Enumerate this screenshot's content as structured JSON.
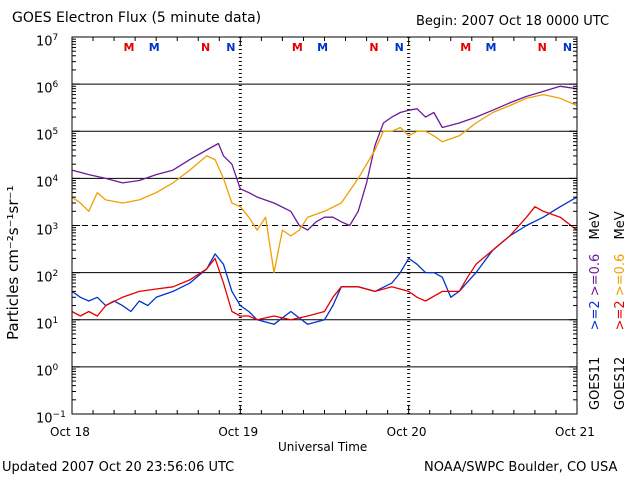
{
  "header": {
    "title": "GOES Electron Flux (5 minute data)",
    "begin": "Begin: 2007 Oct 18 0000 UTC"
  },
  "footer": {
    "updated": "Updated 2007 Oct 20 23:56:06 UTC",
    "credit": "NOAA/SWPC Boulder, CO USA"
  },
  "legend": {
    "goes11_prefix": "GOES11",
    "goes11_e2": ">=2",
    "goes11_e06": ">=0.6",
    "goes11_unit": "MeV",
    "goes12_prefix": "GOES12",
    "goes12_e2": ">=2",
    "goes12_e06": ">=0.6",
    "goes12_unit": "MeV"
  },
  "markers": [
    {
      "label": "M",
      "color": "#e60000",
      "day": 0.33
    },
    {
      "label": "M",
      "color": "#0033cc",
      "day": 0.48
    },
    {
      "label": "N",
      "color": "#e60000",
      "day": 0.79
    },
    {
      "label": "N",
      "color": "#0033cc",
      "day": 0.94
    },
    {
      "label": "M",
      "color": "#e60000",
      "day": 1.33
    },
    {
      "label": "M",
      "color": "#0033cc",
      "day": 1.48
    },
    {
      "label": "N",
      "color": "#e60000",
      "day": 1.79
    },
    {
      "label": "N",
      "color": "#0033cc",
      "day": 1.94
    },
    {
      "label": "M",
      "color": "#e60000",
      "day": 2.33
    },
    {
      "label": "M",
      "color": "#0033cc",
      "day": 2.48
    },
    {
      "label": "N",
      "color": "#e60000",
      "day": 2.79
    },
    {
      "label": "N",
      "color": "#0033cc",
      "day": 2.94
    }
  ],
  "chart_data": {
    "type": "line",
    "xlabel": "Universal Time",
    "ylabel": "Particles cm⁻²s⁻¹sr⁻¹",
    "y_scale": "log",
    "ylim": [
      0.1,
      10000000
    ],
    "xlim_days": [
      0,
      3
    ],
    "x_ticks": [
      {
        "day": 0,
        "label": "Oct 18"
      },
      {
        "day": 1,
        "label": "Oct 19"
      },
      {
        "day": 2,
        "label": "Oct 20"
      },
      {
        "day": 3,
        "label": "Oct 21"
      }
    ],
    "y_ticks": [
      {
        "value": 0.1,
        "base": "10",
        "exp": "−1"
      },
      {
        "value": 1,
        "base": "10",
        "exp": "0"
      },
      {
        "value": 10,
        "base": "10",
        "exp": "1"
      },
      {
        "value": 100,
        "base": "10",
        "exp": "2"
      },
      {
        "value": 1000,
        "base": "10",
        "exp": "3"
      },
      {
        "value": 10000,
        "base": "10",
        "exp": "4"
      },
      {
        "value": 100000,
        "base": "10",
        "exp": "5"
      },
      {
        "value": 1000000,
        "base": "10",
        "exp": "6"
      },
      {
        "value": 10000000,
        "base": "10",
        "exp": "7"
      }
    ],
    "dashed_reference": 1000,
    "series": [
      {
        "name": "GOES11 >=0.6 MeV",
        "color": "#6a1b9a",
        "points": [
          [
            0,
            15000
          ],
          [
            0.1,
            12000
          ],
          [
            0.2,
            10000
          ],
          [
            0.3,
            8000
          ],
          [
            0.4,
            9000
          ],
          [
            0.5,
            12000
          ],
          [
            0.6,
            15000
          ],
          [
            0.7,
            25000
          ],
          [
            0.8,
            40000
          ],
          [
            0.87,
            55000
          ],
          [
            0.9,
            30000
          ],
          [
            0.95,
            20000
          ],
          [
            1.0,
            6000
          ],
          [
            1.05,
            5000
          ],
          [
            1.1,
            4000
          ],
          [
            1.2,
            3000
          ],
          [
            1.3,
            2000
          ],
          [
            1.35,
            1000
          ],
          [
            1.4,
            800
          ],
          [
            1.45,
            1200
          ],
          [
            1.5,
            1500
          ],
          [
            1.55,
            1500
          ],
          [
            1.6,
            1200
          ],
          [
            1.65,
            1000
          ],
          [
            1.7,
            2000
          ],
          [
            1.75,
            8000
          ],
          [
            1.8,
            50000
          ],
          [
            1.85,
            150000
          ],
          [
            1.9,
            200000
          ],
          [
            1.95,
            250000
          ],
          [
            2.0,
            280000
          ],
          [
            2.05,
            300000
          ],
          [
            2.1,
            200000
          ],
          [
            2.15,
            250000
          ],
          [
            2.2,
            120000
          ],
          [
            2.3,
            150000
          ],
          [
            2.4,
            200000
          ],
          [
            2.5,
            280000
          ],
          [
            2.6,
            400000
          ],
          [
            2.7,
            550000
          ],
          [
            2.8,
            700000
          ],
          [
            2.9,
            900000
          ],
          [
            3.0,
            800000
          ]
        ]
      },
      {
        "name": "GOES12 >=0.6 MeV",
        "color": "#f0a000",
        "points": [
          [
            0,
            4000
          ],
          [
            0.05,
            3000
          ],
          [
            0.1,
            2000
          ],
          [
            0.15,
            5000
          ],
          [
            0.2,
            3500
          ],
          [
            0.3,
            3000
          ],
          [
            0.4,
            3500
          ],
          [
            0.5,
            5000
          ],
          [
            0.6,
            8000
          ],
          [
            0.7,
            15000
          ],
          [
            0.8,
            30000
          ],
          [
            0.85,
            25000
          ],
          [
            0.9,
            10000
          ],
          [
            0.95,
            3000
          ],
          [
            1.0,
            2500
          ],
          [
            1.05,
            1500
          ],
          [
            1.1,
            800
          ],
          [
            1.15,
            1500
          ],
          [
            1.2,
            100
          ],
          [
            1.25,
            800
          ],
          [
            1.3,
            600
          ],
          [
            1.35,
            800
          ],
          [
            1.4,
            1500
          ],
          [
            1.5,
            2000
          ],
          [
            1.6,
            3000
          ],
          [
            1.7,
            10000
          ],
          [
            1.8,
            40000
          ],
          [
            1.85,
            100000
          ],
          [
            1.9,
            100000
          ],
          [
            1.95,
            120000
          ],
          [
            2.0,
            80000
          ],
          [
            2.05,
            100000
          ],
          [
            2.1,
            100000
          ],
          [
            2.15,
            80000
          ],
          [
            2.2,
            60000
          ],
          [
            2.3,
            80000
          ],
          [
            2.4,
            150000
          ],
          [
            2.5,
            250000
          ],
          [
            2.6,
            350000
          ],
          [
            2.7,
            500000
          ],
          [
            2.8,
            600000
          ],
          [
            2.9,
            500000
          ],
          [
            3.0,
            350000
          ]
        ]
      },
      {
        "name": "GOES11 >=2 MeV",
        "color": "#0033cc",
        "points": [
          [
            0,
            40
          ],
          [
            0.05,
            30
          ],
          [
            0.1,
            25
          ],
          [
            0.15,
            30
          ],
          [
            0.2,
            20
          ],
          [
            0.25,
            25
          ],
          [
            0.3,
            20
          ],
          [
            0.35,
            15
          ],
          [
            0.4,
            25
          ],
          [
            0.45,
            20
          ],
          [
            0.5,
            30
          ],
          [
            0.6,
            40
          ],
          [
            0.7,
            60
          ],
          [
            0.8,
            120
          ],
          [
            0.85,
            250
          ],
          [
            0.9,
            150
          ],
          [
            0.95,
            40
          ],
          [
            1.0,
            20
          ],
          [
            1.05,
            15
          ],
          [
            1.1,
            10
          ],
          [
            1.2,
            8
          ],
          [
            1.3,
            15
          ],
          [
            1.4,
            8
          ],
          [
            1.5,
            10
          ],
          [
            1.55,
            20
          ],
          [
            1.6,
            50
          ],
          [
            1.7,
            50
          ],
          [
            1.8,
            40
          ],
          [
            1.9,
            60
          ],
          [
            1.95,
            100
          ],
          [
            2.0,
            200
          ],
          [
            2.05,
            150
          ],
          [
            2.1,
            100
          ],
          [
            2.15,
            100
          ],
          [
            2.2,
            80
          ],
          [
            2.25,
            30
          ],
          [
            2.3,
            40
          ],
          [
            2.4,
            100
          ],
          [
            2.5,
            300
          ],
          [
            2.6,
            600
          ],
          [
            2.7,
            1000
          ],
          [
            2.8,
            1500
          ],
          [
            2.9,
            2500
          ],
          [
            3.0,
            4000
          ]
        ]
      },
      {
        "name": "GOES12 >=2 MeV",
        "color": "#e60000",
        "points": [
          [
            0,
            15
          ],
          [
            0.05,
            12
          ],
          [
            0.1,
            15
          ],
          [
            0.15,
            12
          ],
          [
            0.2,
            20
          ],
          [
            0.3,
            30
          ],
          [
            0.4,
            40
          ],
          [
            0.5,
            45
          ],
          [
            0.6,
            50
          ],
          [
            0.7,
            70
          ],
          [
            0.8,
            120
          ],
          [
            0.85,
            200
          ],
          [
            0.9,
            60
          ],
          [
            0.95,
            15
          ],
          [
            1.0,
            12
          ],
          [
            1.05,
            12
          ],
          [
            1.1,
            10
          ],
          [
            1.2,
            12
          ],
          [
            1.3,
            10
          ],
          [
            1.4,
            12
          ],
          [
            1.5,
            15
          ],
          [
            1.55,
            30
          ],
          [
            1.6,
            50
          ],
          [
            1.7,
            50
          ],
          [
            1.8,
            40
          ],
          [
            1.9,
            50
          ],
          [
            2.0,
            40
          ],
          [
            2.05,
            30
          ],
          [
            2.1,
            25
          ],
          [
            2.2,
            40
          ],
          [
            2.3,
            40
          ],
          [
            2.35,
            80
          ],
          [
            2.4,
            150
          ],
          [
            2.5,
            300
          ],
          [
            2.6,
            600
          ],
          [
            2.7,
            1500
          ],
          [
            2.75,
            2500
          ],
          [
            2.8,
            2000
          ],
          [
            2.9,
            1500
          ],
          [
            3.0,
            800
          ]
        ]
      }
    ]
  }
}
